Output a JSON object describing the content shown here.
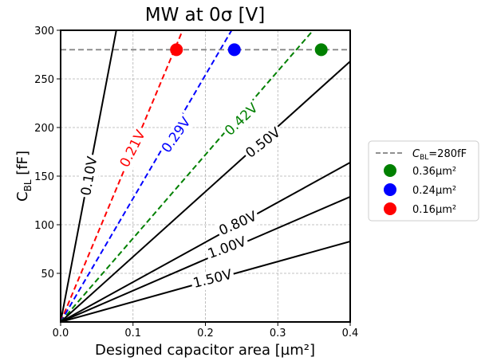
{
  "chart_data": {
    "type": "line",
    "title": "MW at 0σ  [V]",
    "xlabel": "Designed capacitor area [µm²]",
    "ylabel": "C",
    "ylabel_sub": "BL",
    "ylabel_unit": " [fF]",
    "xlim": [
      0.0,
      0.4
    ],
    "ylim": [
      0,
      300
    ],
    "xticks": [
      0.0,
      0.1,
      0.2,
      0.3,
      0.4
    ],
    "xtick_labels": [
      "0.0",
      "0.1",
      "0.2",
      "0.3",
      "0.4"
    ],
    "yticks": [
      50,
      100,
      150,
      200,
      250,
      300
    ],
    "ytick_labels": [
      "50",
      "100",
      "150",
      "200",
      "250",
      "300"
    ],
    "grid": true,
    "reference_line": {
      "y": 280,
      "label_prefix": "C",
      "label_sub": "BL",
      "label_suffix": "=280fF",
      "color": "#808080"
    },
    "contours": [
      {
        "label": "0.10V",
        "slope": 3900,
        "color": "#000000",
        "dashed": false,
        "label_pos": [
          0.04,
          150
        ],
        "rotation": -80
      },
      {
        "label": "0.21V",
        "slope": 1780,
        "color": "#ff0000",
        "dashed": true,
        "label_pos": [
          0.1,
          178
        ],
        "rotation": -63
      },
      {
        "label": "0.29V",
        "slope": 1270,
        "color": "#0000ff",
        "dashed": true,
        "label_pos": [
          0.16,
          192
        ],
        "rotation": -55
      },
      {
        "label": "0.42V",
        "slope": 860,
        "color": "#008000",
        "dashed": true,
        "label_pos": [
          0.25,
          208
        ],
        "rotation": -44
      },
      {
        "label": "0.50V",
        "slope": 670,
        "color": "#000000",
        "dashed": false,
        "label_pos": [
          0.28,
          184
        ],
        "rotation": -38
      },
      {
        "label": "0.80V",
        "slope": 410,
        "color": "#000000",
        "dashed": false,
        "label_pos": [
          0.245,
          101
        ],
        "rotation": -24
      },
      {
        "label": "1.00V",
        "slope": 322,
        "color": "#000000",
        "dashed": false,
        "label_pos": [
          0.23,
          76
        ],
        "rotation": -20
      },
      {
        "label": "1.50V",
        "slope": 207,
        "color": "#000000",
        "dashed": false,
        "label_pos": [
          0.21,
          44
        ],
        "rotation": -14
      }
    ],
    "points": [
      {
        "x": 0.36,
        "y": 280,
        "color": "#008000",
        "legend": "0.36µm²"
      },
      {
        "x": 0.24,
        "y": 280,
        "color": "#0000ff",
        "legend": "0.24µm²"
      },
      {
        "x": 0.16,
        "y": 280,
        "color": "#ff0000",
        "legend": "0.16µm²"
      }
    ],
    "legend_position": "right"
  }
}
